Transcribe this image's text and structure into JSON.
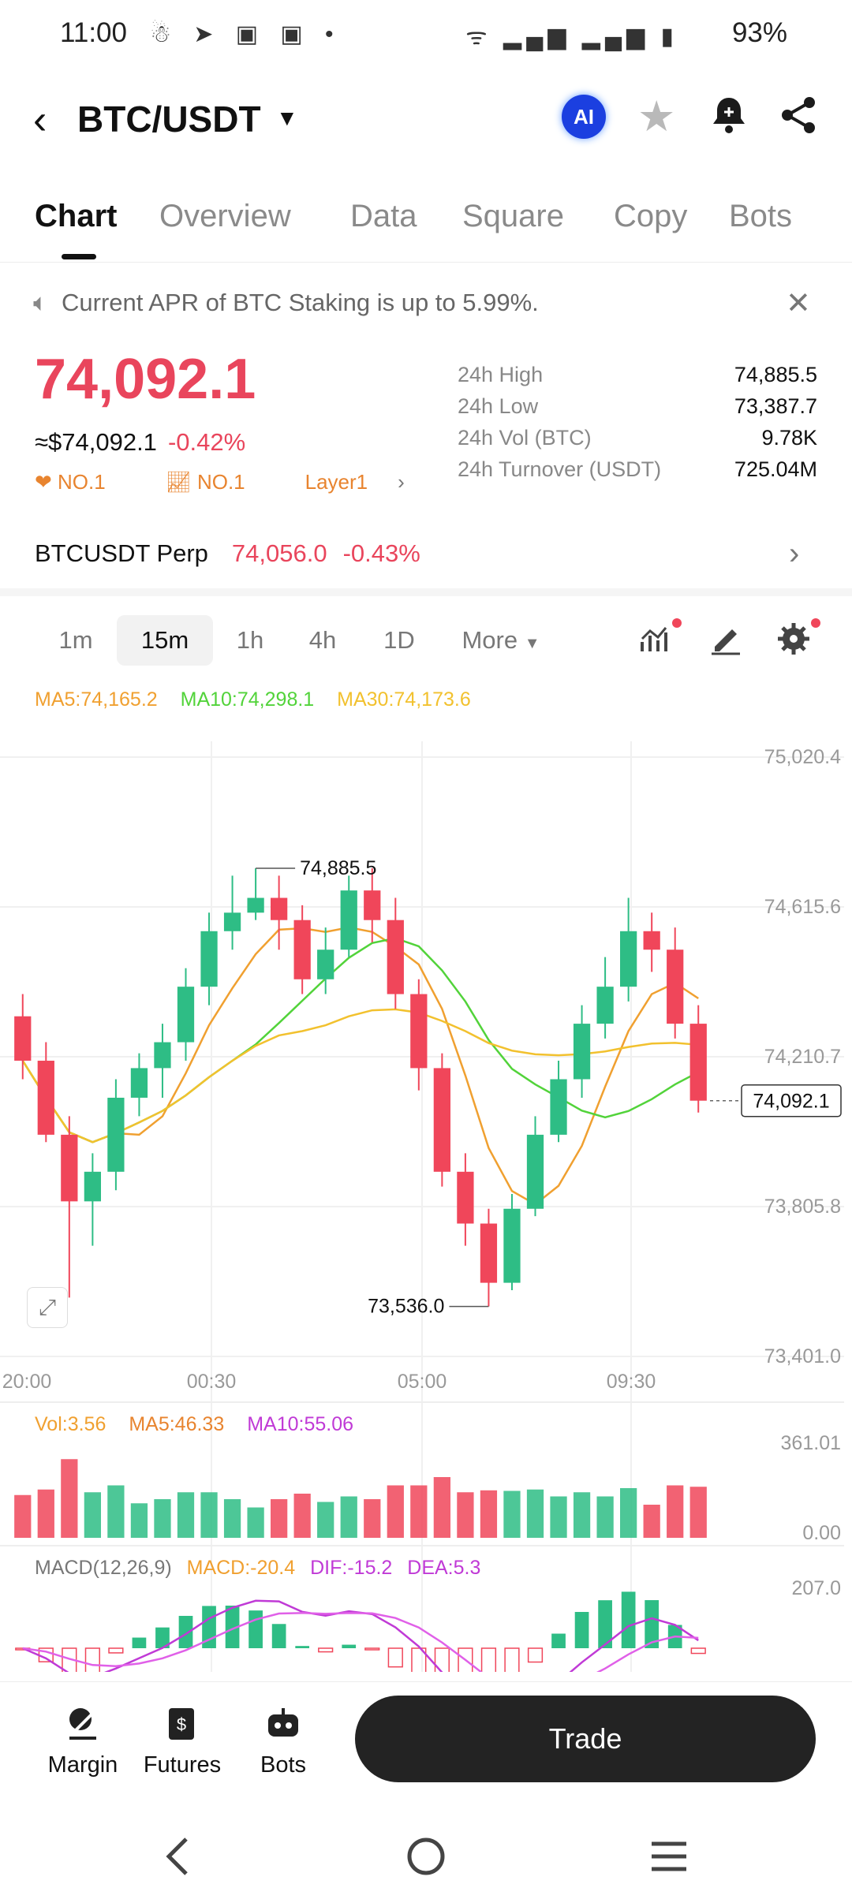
{
  "status_bar": {
    "time": "11:00",
    "battery": "93%"
  },
  "header": {
    "pair": "BTC/USDT",
    "ai_label": "AI"
  },
  "tabs": [
    {
      "label": "Chart",
      "active": true
    },
    {
      "label": "Overview"
    },
    {
      "label": "Data"
    },
    {
      "label": "Square"
    },
    {
      "label": "Copy"
    },
    {
      "label": "Bots"
    }
  ],
  "announcement": "Current APR of BTC Staking is up to 5.99%.",
  "price": {
    "last": "74,092.1",
    "usd": "≈$74,092.1",
    "change": "-0.42%",
    "badges": [
      "NO.1",
      "NO.1",
      "Layer1"
    ]
  },
  "stats": [
    {
      "label": "24h High",
      "value": "74,885.5"
    },
    {
      "label": "24h Low",
      "value": "73,387.7"
    },
    {
      "label": "24h Vol (BTC)",
      "value": "9.78K"
    },
    {
      "label": "24h Turnover (USDT)",
      "value": "725.04M"
    }
  ],
  "perp": {
    "name": "BTCUSDT Perp",
    "price": "74,056.0",
    "change": "-0.43%"
  },
  "timeframes": [
    {
      "label": "1m"
    },
    {
      "label": "15m",
      "selected": true
    },
    {
      "label": "1h"
    },
    {
      "label": "4h"
    },
    {
      "label": "1D"
    },
    {
      "label": "More"
    }
  ],
  "ma_legend": {
    "ma5": "MA5:74,165.2",
    "ma10": "MA10:74,298.1",
    "ma30": "MA30:74,173.6"
  },
  "colors": {
    "up": "#2ebd85",
    "down": "#f0465a",
    "ma5": "#f0a030",
    "ma10": "#52d33a",
    "ma30": "#f2c12e",
    "macd": "#c03ad6"
  },
  "chart_data": {
    "type": "candlestick",
    "y_ticks": [
      "75,020.4",
      "74,615.6",
      "74,210.7",
      "73,805.8",
      "73,401.0"
    ],
    "ylim": [
      73401.0,
      75020.4
    ],
    "x_ticks": [
      "20:00",
      "00:30",
      "05:00",
      "09:30"
    ],
    "high_label": "74,885.5",
    "low_label": "73,536.0",
    "last_label": "74,092.1",
    "candles": [
      [
        74320,
        74200,
        74380,
        74150
      ],
      [
        74200,
        74000,
        74250,
        73980
      ],
      [
        74000,
        73820,
        74050,
        73560
      ],
      [
        73820,
        73900,
        73950,
        73700
      ],
      [
        73900,
        74100,
        74150,
        73850
      ],
      [
        74100,
        74180,
        74220,
        74050
      ],
      [
        74180,
        74250,
        74300,
        74100
      ],
      [
        74250,
        74400,
        74450,
        74200
      ],
      [
        74400,
        74550,
        74600,
        74350
      ],
      [
        74550,
        74600,
        74700,
        74500
      ],
      [
        74600,
        74640,
        74720,
        74580
      ],
      [
        74640,
        74580,
        74700,
        74500
      ],
      [
        74580,
        74420,
        74620,
        74380
      ],
      [
        74420,
        74500,
        74560,
        74380
      ],
      [
        74500,
        74660,
        74700,
        74480
      ],
      [
        74660,
        74580,
        74720,
        74520
      ],
      [
        74580,
        74380,
        74640,
        74340
      ],
      [
        74380,
        74180,
        74420,
        74120
      ],
      [
        74180,
        73900,
        74220,
        73860
      ],
      [
        73900,
        73760,
        73950,
        73700
      ],
      [
        73760,
        73600,
        73800,
        73536
      ],
      [
        73600,
        73800,
        73840,
        73580
      ],
      [
        73800,
        74000,
        74050,
        73780
      ],
      [
        74000,
        74150,
        74200,
        73980
      ],
      [
        74150,
        74300,
        74350,
        74100
      ],
      [
        74300,
        74400,
        74480,
        74260
      ],
      [
        74400,
        74550,
        74640,
        74360
      ],
      [
        74550,
        74500,
        74600,
        74440
      ],
      [
        74500,
        74300,
        74560,
        74260
      ],
      [
        74300,
        74092,
        74350,
        74060
      ]
    ],
    "volume": {
      "label": "Vol:3.56",
      "ma5": "MA5:46.33",
      "ma10": "MA10:55.06",
      "ticks": [
        "361.01",
        "0.00"
      ]
    },
    "macd": {
      "label": "MACD(12,26,9)",
      "macd": "MACD:-20.4",
      "dif": "DIF:-15.2",
      "dea": "DEA:5.3",
      "tick": "207.0"
    }
  },
  "bottom_nav": [
    {
      "label": "Margin"
    },
    {
      "label": "Futures"
    },
    {
      "label": "Bots"
    }
  ],
  "trade_label": "Trade"
}
